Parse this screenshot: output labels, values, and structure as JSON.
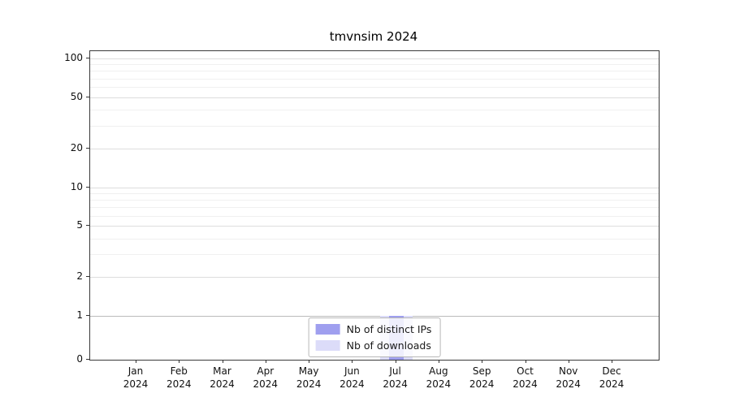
{
  "chart_data": {
    "type": "bar",
    "title": "tmvnsim 2024",
    "yscale": "log above 1, linear segment 0-1",
    "ylim": [
      0,
      114
    ],
    "yticks": [
      0,
      1,
      2,
      5,
      10,
      20,
      50,
      100
    ],
    "grid": true,
    "categories": [
      {
        "month": "Jan",
        "year": "2024"
      },
      {
        "month": "Feb",
        "year": "2024"
      },
      {
        "month": "Mar",
        "year": "2024"
      },
      {
        "month": "Apr",
        "year": "2024"
      },
      {
        "month": "May",
        "year": "2024"
      },
      {
        "month": "Jun",
        "year": "2024"
      },
      {
        "month": "Jul",
        "year": "2024"
      },
      {
        "month": "Aug",
        "year": "2024"
      },
      {
        "month": "Sep",
        "year": "2024"
      },
      {
        "month": "Oct",
        "year": "2024"
      },
      {
        "month": "Nov",
        "year": "2024"
      },
      {
        "month": "Dec",
        "year": "2024"
      }
    ],
    "series": [
      {
        "name": "Nb of downloads",
        "color": "#dcdcf9",
        "values": [
          0,
          0,
          0,
          0,
          0,
          0,
          1,
          0,
          0,
          0,
          0,
          0
        ]
      },
      {
        "name": "Nb of distinct IPs",
        "color": "#9f9fef",
        "values": [
          0,
          0,
          0,
          0,
          0,
          0,
          1,
          0,
          0,
          0,
          0,
          0
        ]
      }
    ],
    "legend": {
      "position": "inside-bottom-center",
      "items": [
        {
          "label": "Nb of distinct IPs",
          "color": "#9f9fef"
        },
        {
          "label": "Nb of downloads",
          "color": "#dcdcf9"
        }
      ]
    },
    "colors": {
      "axis": "#3a3a3a",
      "grid_major": "#dddddd",
      "grid_baseline_1": "#bbbbbb",
      "grid_minor": "#f0f0f0",
      "background": "#ffffff"
    }
  }
}
